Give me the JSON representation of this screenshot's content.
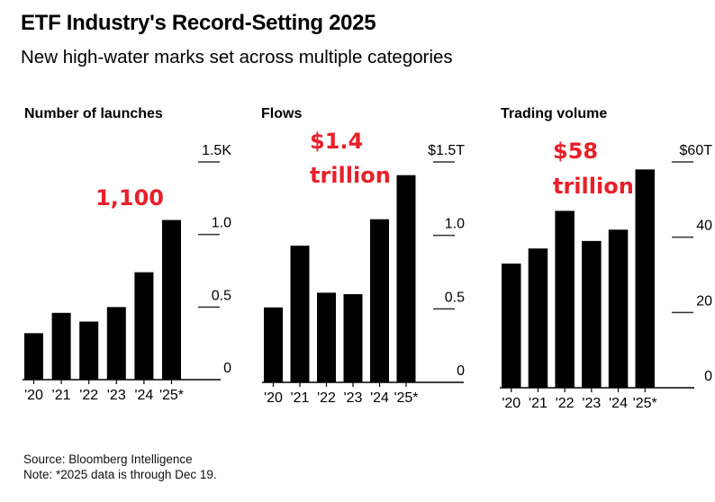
{
  "header": {
    "title": "ETF Industry's Record-Setting 2025",
    "subtitle": "New high-water marks set across multiple categories"
  },
  "footer": {
    "source": "Source: Bloomberg Intelligence",
    "note": "Note: *2025 data is through Dec 19."
  },
  "colors": {
    "bar": "#000000",
    "annotation": "#e8202a",
    "gridline": "#333333"
  },
  "chart_data": [
    {
      "type": "bar",
      "title": "Number of launches",
      "categories": [
        "'20",
        "'21",
        "'22",
        "'23",
        "'24",
        "'25*"
      ],
      "values": [
        0.32,
        0.46,
        0.4,
        0.5,
        0.74,
        1.1
      ],
      "unit": "K",
      "ylim": [
        0,
        1.5
      ],
      "yticks": [
        0,
        0.5,
        1.0,
        1.5
      ],
      "ytick_labels": [
        "0",
        "0.5",
        "1.0",
        "1.5K"
      ],
      "axis_side": "right",
      "annotation": [
        "1,100"
      ]
    },
    {
      "type": "bar",
      "title": "Flows",
      "categories": [
        "'20",
        "'21",
        "'22",
        "'23",
        "'24",
        "'25*"
      ],
      "values": [
        0.51,
        0.93,
        0.61,
        0.6,
        1.11,
        1.41
      ],
      "unit": "$T",
      "ylim": [
        0,
        1.5
      ],
      "yticks": [
        0,
        0.5,
        1.0,
        1.5
      ],
      "ytick_labels": [
        "0",
        "0.5",
        "1.0",
        "$1.5T"
      ],
      "axis_side": "right",
      "annotation": [
        "$1.4",
        "trillion"
      ]
    },
    {
      "type": "bar",
      "title": "Trading volume",
      "categories": [
        "'20",
        "'21",
        "'22",
        "'23",
        "'24",
        "'25*"
      ],
      "values": [
        33,
        37,
        47,
        39,
        42,
        58
      ],
      "unit": "$T",
      "ylim": [
        0,
        60
      ],
      "yticks": [
        0,
        20,
        40,
        60
      ],
      "ytick_labels": [
        "0",
        "20",
        "40",
        "$60T"
      ],
      "axis_side": "right",
      "annotation": [
        "$58",
        "trillion"
      ]
    }
  ]
}
